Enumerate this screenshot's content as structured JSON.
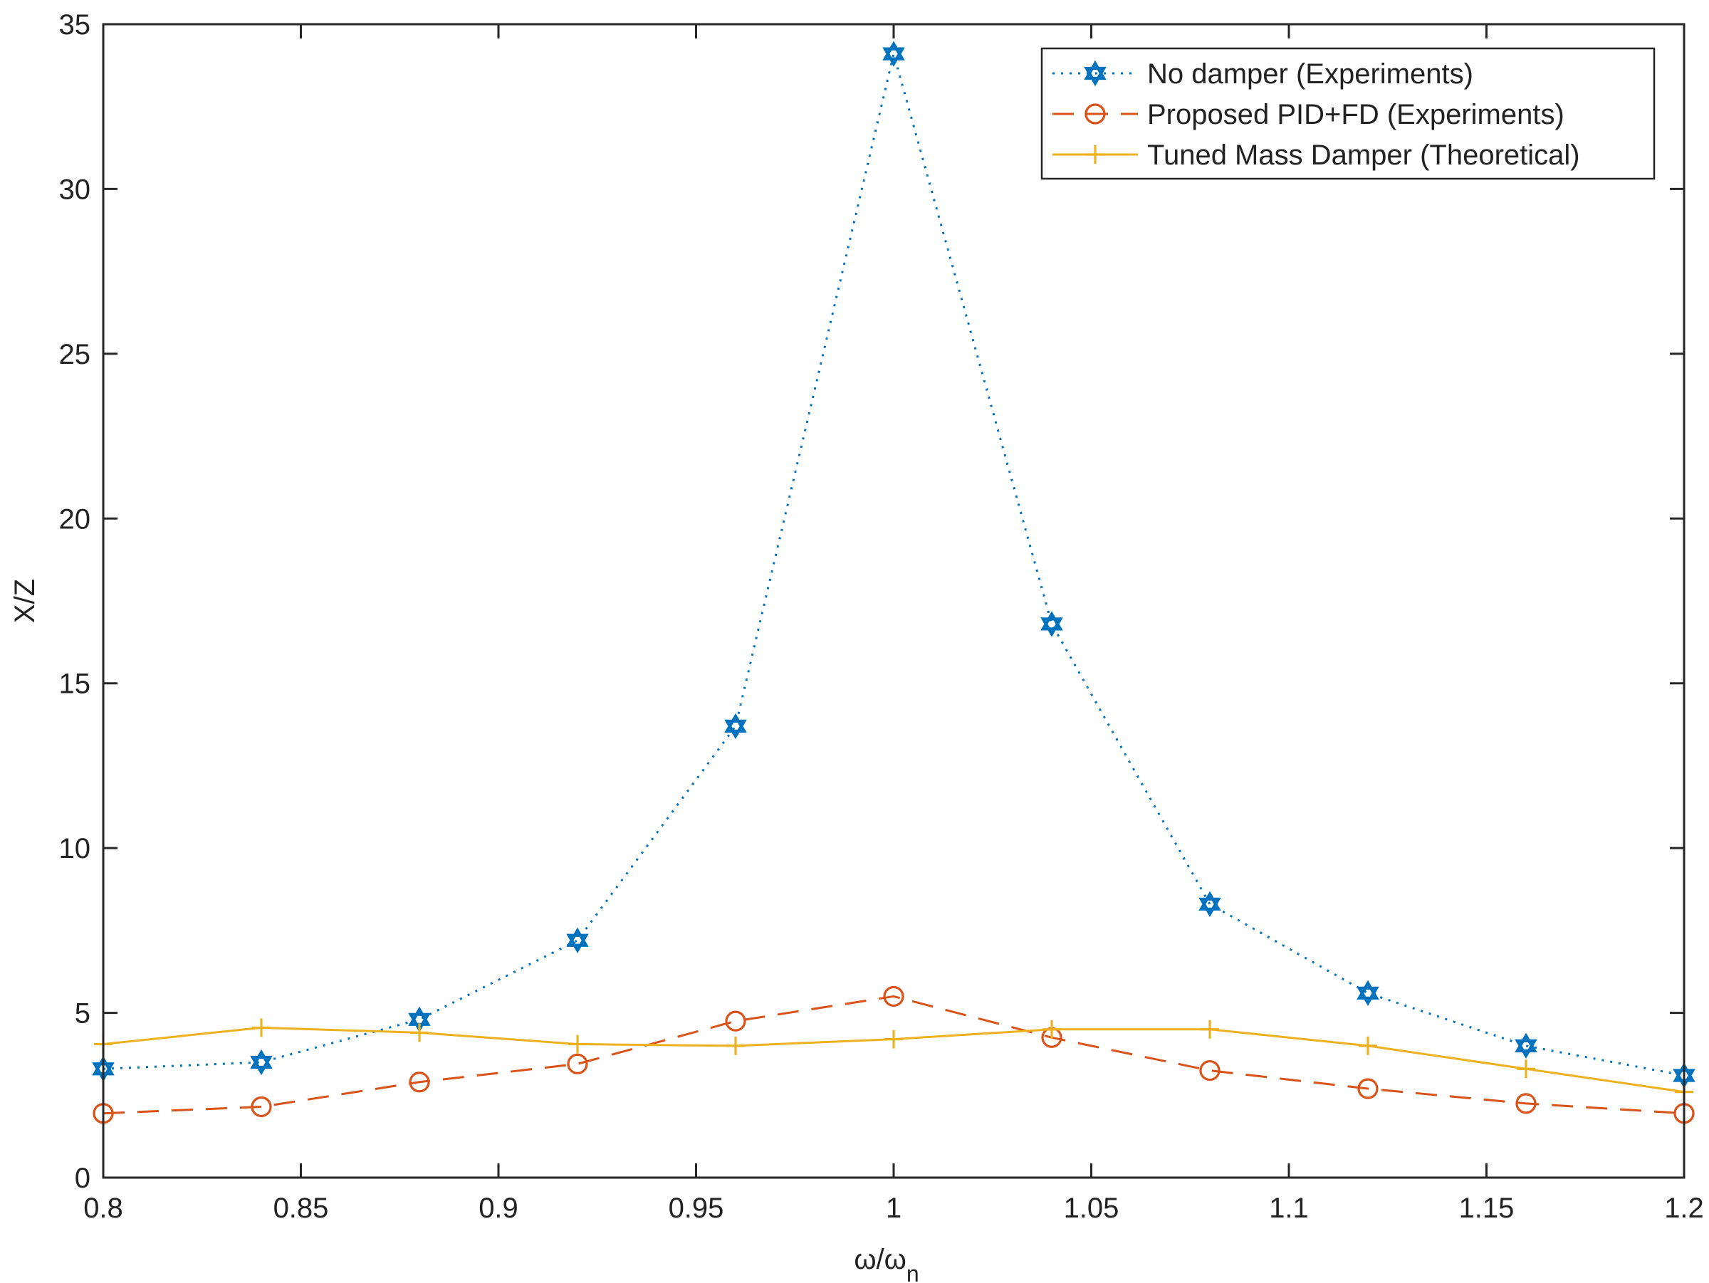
{
  "chart_data": {
    "type": "line",
    "xlabel": {
      "main": "ω/ω",
      "sub": "n"
    },
    "ylabel": "X/Z",
    "xlim": [
      0.8,
      1.2
    ],
    "ylim": [
      0,
      35
    ],
    "x_ticks": [
      "0.8",
      "0.85",
      "0.9",
      "0.95",
      "1",
      "1.05",
      "1.1",
      "1.15",
      "1.2"
    ],
    "y_ticks": [
      "0",
      "5",
      "10",
      "15",
      "20",
      "25",
      "30",
      "35"
    ],
    "grid": false,
    "box": true,
    "legend_position": "top-right",
    "x": [
      0.8,
      0.84,
      0.88,
      0.92,
      0.96,
      1.0,
      1.04,
      1.08,
      1.12,
      1.16,
      1.2
    ],
    "series": [
      {
        "name": "No damper (Experiments)",
        "color": "#0072BD",
        "line_style": "dotted",
        "marker": "hexagram",
        "values": [
          3.3,
          3.5,
          4.8,
          7.2,
          13.7,
          34.1,
          16.8,
          8.3,
          5.6,
          4.0,
          3.1
        ]
      },
      {
        "name": "Proposed PID+FD (Experiments)",
        "color": "#D95319",
        "line_style": "dashed",
        "marker": "circle",
        "values": [
          1.95,
          2.15,
          2.9,
          3.45,
          4.75,
          5.5,
          4.25,
          3.25,
          2.7,
          2.25,
          1.95
        ]
      },
      {
        "name": "Tuned Mass Damper (Theoretical)",
        "color": "#EDB120",
        "line_style": "solid",
        "marker": "plus",
        "values": [
          4.05,
          4.55,
          4.4,
          4.05,
          4.0,
          4.2,
          4.5,
          4.5,
          4.0,
          3.3,
          2.6
        ]
      }
    ]
  }
}
